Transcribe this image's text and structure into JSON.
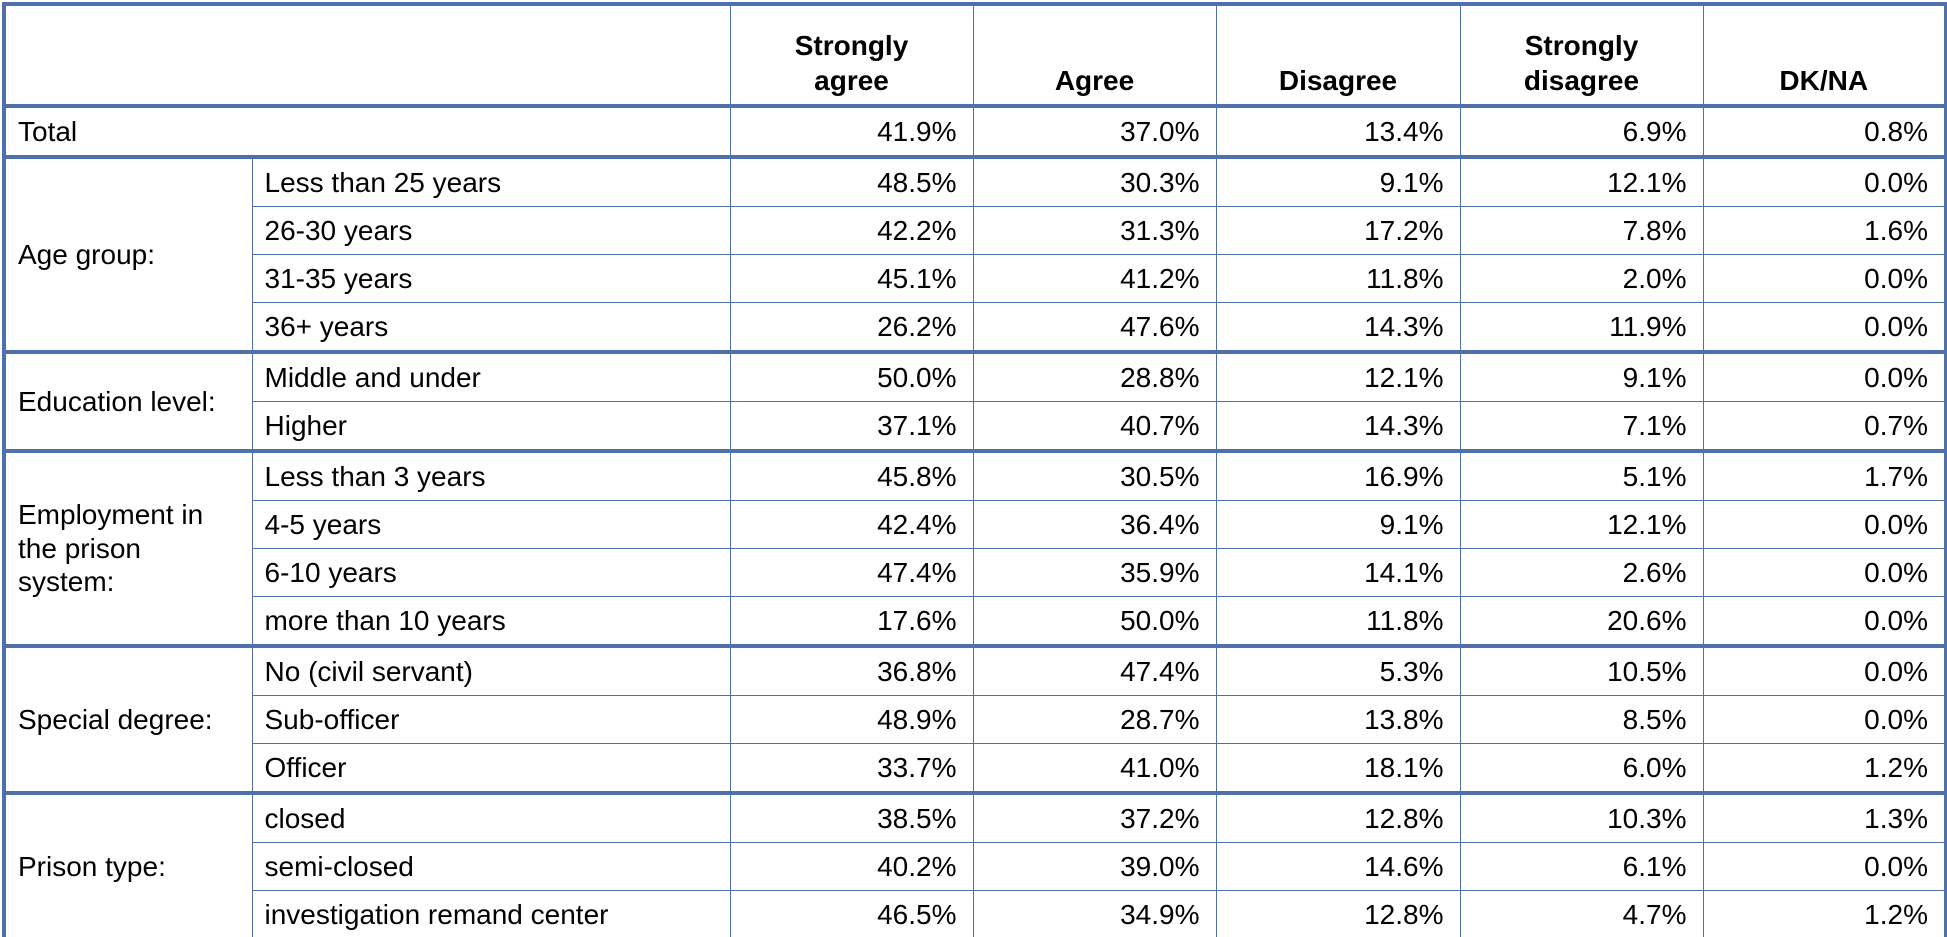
{
  "table": {
    "columns": [
      "Strongly agree",
      "Agree",
      "Disagree",
      "Strongly disagree",
      "DK/NA"
    ],
    "total": {
      "label": "Total",
      "values": [
        "41.9%",
        "37.0%",
        "13.4%",
        "6.9%",
        "0.8%"
      ]
    },
    "groups": [
      {
        "label": "Age group:",
        "rows": [
          {
            "label": "Less than 25 years",
            "values": [
              "48.5%",
              "30.3%",
              "9.1%",
              "12.1%",
              "0.0%"
            ]
          },
          {
            "label": "26-30 years",
            "values": [
              "42.2%",
              "31.3%",
              "17.2%",
              "7.8%",
              "1.6%"
            ]
          },
          {
            "label": "31-35 years",
            "values": [
              "45.1%",
              "41.2%",
              "11.8%",
              "2.0%",
              "0.0%"
            ]
          },
          {
            "label": "36+ years",
            "values": [
              "26.2%",
              "47.6%",
              "14.3%",
              "11.9%",
              "0.0%"
            ]
          }
        ]
      },
      {
        "label": "Education level:",
        "rows": [
          {
            "label": "Middle and under",
            "values": [
              "50.0%",
              "28.8%",
              "12.1%",
              "9.1%",
              "0.0%"
            ]
          },
          {
            "label": "Higher",
            "values": [
              "37.1%",
              "40.7%",
              "14.3%",
              "7.1%",
              "0.7%"
            ]
          }
        ]
      },
      {
        "label": "Employment in the prison system:",
        "rows": [
          {
            "label": "Less than 3 years",
            "values": [
              "45.8%",
              "30.5%",
              "16.9%",
              "5.1%",
              "1.7%"
            ]
          },
          {
            "label": "4-5 years",
            "values": [
              "42.4%",
              "36.4%",
              "9.1%",
              "12.1%",
              "0.0%"
            ]
          },
          {
            "label": "6-10 years",
            "values": [
              "47.4%",
              "35.9%",
              "14.1%",
              "2.6%",
              "0.0%"
            ]
          },
          {
            "label": "more than 10 years",
            "values": [
              "17.6%",
              "50.0%",
              "11.8%",
              "20.6%",
              "0.0%"
            ]
          }
        ]
      },
      {
        "label": "Special degree:",
        "rows": [
          {
            "label": "No (civil servant)",
            "values": [
              "36.8%",
              "47.4%",
              "5.3%",
              "10.5%",
              "0.0%"
            ]
          },
          {
            "label": "Sub-officer",
            "values": [
              "48.9%",
              "28.7%",
              "13.8%",
              "8.5%",
              "0.0%"
            ]
          },
          {
            "label": "Officer",
            "values": [
              "33.7%",
              "41.0%",
              "18.1%",
              "6.0%",
              "1.2%"
            ]
          }
        ]
      },
      {
        "label": "Prison type:",
        "rows": [
          {
            "label": "closed",
            "values": [
              "38.5%",
              "37.2%",
              "12.8%",
              "10.3%",
              "1.3%"
            ]
          },
          {
            "label": "semi-closed",
            "values": [
              "40.2%",
              "39.0%",
              "14.6%",
              "6.1%",
              "0.0%"
            ]
          },
          {
            "label": "investigation remand center",
            "values": [
              "46.5%",
              "34.9%",
              "12.8%",
              "4.7%",
              "1.2%"
            ]
          }
        ]
      }
    ]
  }
}
